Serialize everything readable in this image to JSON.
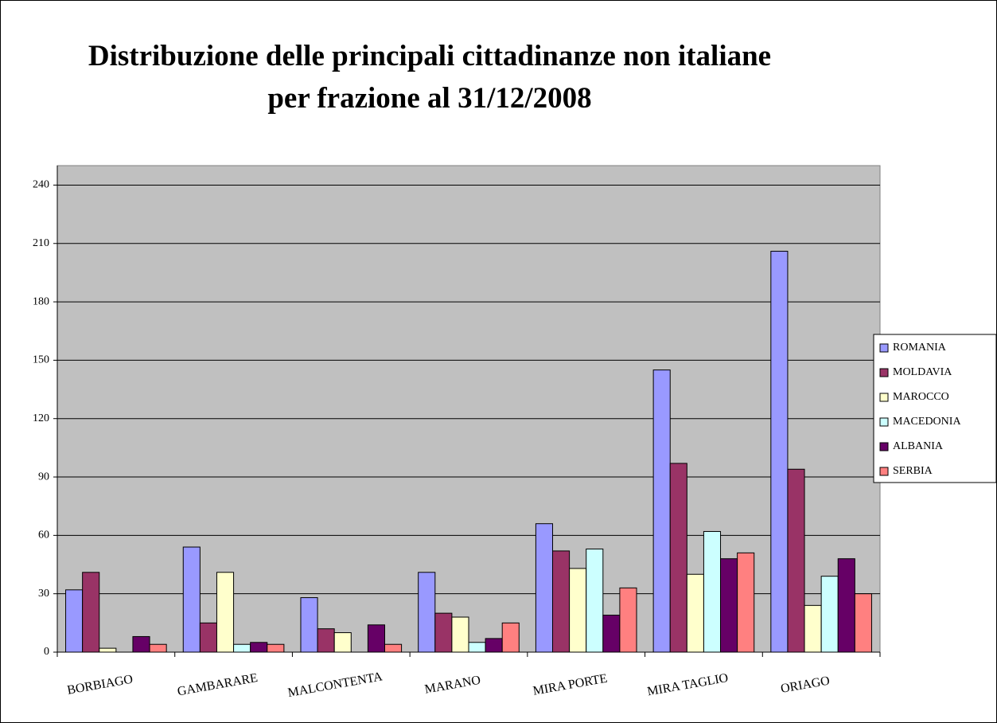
{
  "chart_data": {
    "type": "bar",
    "title": "Distribuzione delle principali cittadinanze non italiane per frazione al 31/12/2008",
    "categories": [
      "BORBIAGO",
      "GAMBARARE",
      "MALCONTENTA",
      "MARANO",
      "MIRA PORTE",
      "MIRA TAGLIO",
      "ORIAGO"
    ],
    "series": [
      {
        "name": "ROMANIA",
        "color": "#9999ff",
        "values": [
          32,
          54,
          28,
          41,
          66,
          145,
          206
        ]
      },
      {
        "name": "MOLDAVIA",
        "color": "#993366",
        "values": [
          41,
          15,
          12,
          20,
          52,
          97,
          94
        ]
      },
      {
        "name": "MAROCCO",
        "color": "#ffffcc",
        "values": [
          2,
          41,
          10,
          18,
          43,
          40,
          24
        ]
      },
      {
        "name": "MACEDONIA",
        "color": "#ccffff",
        "values": [
          0,
          4,
          0,
          5,
          53,
          62,
          39
        ]
      },
      {
        "name": "ALBANIA",
        "color": "#660066",
        "values": [
          8,
          5,
          14,
          7,
          19,
          48,
          48
        ]
      },
      {
        "name": "SERBIA",
        "color": "#ff8080",
        "values": [
          4,
          4,
          4,
          15,
          33,
          51,
          30
        ]
      }
    ],
    "ylim": [
      0,
      250
    ],
    "yticks": [
      0,
      30,
      60,
      90,
      120,
      150,
      180,
      210,
      240
    ],
    "grid": true,
    "legend": "right",
    "plot_background": "#c0c0c0"
  }
}
